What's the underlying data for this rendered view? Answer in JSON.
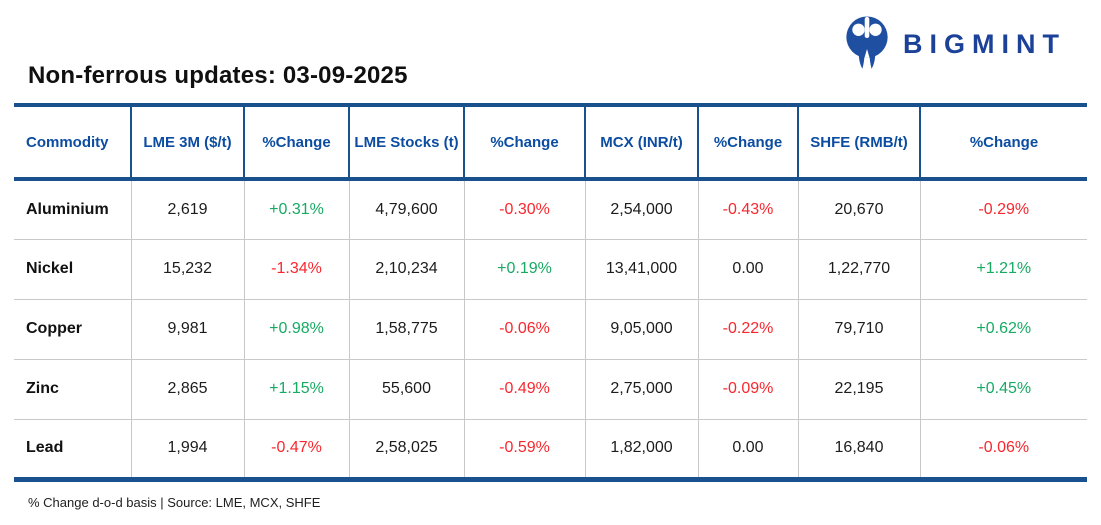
{
  "brand": {
    "name": "BIGMINT"
  },
  "header": {
    "title": "Non-ferrous updates: 03-09-2025"
  },
  "footer": {
    "note": "% Change d-o-d basis | Source: LME, MCX, SHFE"
  },
  "colors": {
    "table_border_blue": "#19518e",
    "header_text_blue": "#0c4da2",
    "positive_green": "#17aa63",
    "negative_red": "#f7272e",
    "brand_blue": "#1b4298",
    "logo_icon_blue": "#1e4fa1"
  },
  "table": {
    "columns": [
      "Commodity",
      "LME 3M ($/t)",
      "%Change",
      "LME Stocks (t)",
      "%Change",
      "MCX (INR/t)",
      "%Change",
      "SHFE (RMB/t)",
      "%Change"
    ],
    "rows": [
      [
        "Aluminium",
        "2,619",
        "+0.31%",
        "4,79,600",
        "-0.30%",
        "2,54,000",
        "-0.43%",
        "20,670",
        "-0.29%"
      ],
      [
        "Nickel",
        "15,232",
        "-1.34%",
        "2,10,234",
        "+0.19%",
        "13,41,000",
        "0.00",
        "1,22,770",
        "+1.21%"
      ],
      [
        "Copper",
        "9,981",
        "+0.98%",
        "1,58,775",
        "-0.06%",
        "9,05,000",
        "-0.22%",
        "79,710",
        "+0.62%"
      ],
      [
        "Zinc",
        "2,865",
        "+1.15%",
        "55,600",
        "-0.49%",
        "2,75,000",
        "-0.09%",
        "22,195",
        "+0.45%"
      ],
      [
        "Lead",
        "1,994",
        "-0.47%",
        "2,58,025",
        "-0.59%",
        "1,82,000",
        "0.00",
        "16,840",
        "-0.06%"
      ]
    ]
  },
  "chart_data": {
    "type": "table",
    "title": "Non-ferrous updates: 03-09-2025",
    "columns": [
      "Commodity",
      "LME 3M ($/t)",
      "%Change",
      "LME Stocks (t)",
      "%Change",
      "MCX (INR/t)",
      "%Change",
      "SHFE (RMB/t)",
      "%Change"
    ],
    "rows": [
      [
        "Aluminium",
        "2,619",
        "+0.31%",
        "4,79,600",
        "-0.30%",
        "2,54,000",
        "-0.43%",
        "20,670",
        "-0.29%"
      ],
      [
        "Nickel",
        "15,232",
        "-1.34%",
        "2,10,234",
        "+0.19%",
        "13,41,000",
        "0.00",
        "1,22,770",
        "+1.21%"
      ],
      [
        "Copper",
        "9,981",
        "+0.98%",
        "1,58,775",
        "-0.06%",
        "9,05,000",
        "-0.22%",
        "79,710",
        "+0.62%"
      ],
      [
        "Zinc",
        "2,865",
        "+1.15%",
        "55,600",
        "-0.49%",
        "2,75,000",
        "-0.09%",
        "22,195",
        "+0.45%"
      ],
      [
        "Lead",
        "1,994",
        "-0.47%",
        "2,58,025",
        "-0.59%",
        "1,82,000",
        "0.00",
        "16,840",
        "-0.06%"
      ]
    ],
    "notes": "% Change d-o-d basis | Source: LME, MCX, SHFE"
  }
}
